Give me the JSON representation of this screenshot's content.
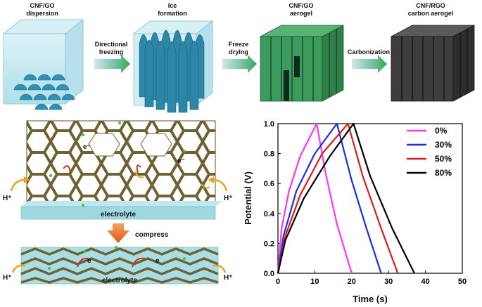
{
  "process": {
    "stages": [
      {
        "line1": "CNF/GO",
        "line2": "dispersion"
      },
      {
        "line1": "Ice",
        "line2": "formation"
      },
      {
        "line1": "CNF/GO",
        "line2": "aerogel"
      },
      {
        "line1": "CNF/RGO",
        "line2": "carbon aerogel"
      }
    ],
    "arrows": [
      {
        "line1": "Directional",
        "line2": "freezing"
      },
      {
        "line1": "Freeze",
        "line2": "drying"
      },
      {
        "line1": "Carbonization",
        "line2": ""
      }
    ]
  },
  "mechanism": {
    "electron_label": "e⁻",
    "electron_label_compressed": "e",
    "proton_label": "H⁺",
    "electrolyte_label": "electrolyte",
    "compress_label": "compress"
  },
  "colors": {
    "dispersion": "#bfe8f0",
    "ice": "#2b8fb0",
    "aerogel": "#3a9b5c",
    "carbon": "#3a3a3a",
    "arrow": "#3fae5a",
    "frame": "#7a6a3a",
    "electrolyte": "#9fd9e0",
    "compress_arrow": "#ef6a1a",
    "series_0": "#ff33ff",
    "series_30": "#1a2fe0",
    "series_50": "#e01a1a",
    "series_80": "#000000"
  },
  "chart_data": {
    "type": "line",
    "xlabel": "Time (s)",
    "ylabel": "Potential (V)",
    "xlim": [
      0,
      50
    ],
    "ylim": [
      0,
      1.0
    ],
    "xticks": [
      "0",
      "10",
      "20",
      "30",
      "40",
      "50"
    ],
    "yticks": [
      "0.0",
      "0.2",
      "0.4",
      "0.6",
      "0.8",
      "1.0"
    ],
    "legend_position": "top-right",
    "series": [
      {
        "name": "0%",
        "color": "#ff33ff",
        "x": [
          0,
          1,
          3,
          6,
          10.5,
          13,
          16,
          20
        ],
        "y": [
          0,
          0.3,
          0.55,
          0.78,
          1.0,
          0.66,
          0.33,
          0
        ]
      },
      {
        "name": "30%",
        "color": "#1a2fe0",
        "x": [
          0,
          1.5,
          5,
          10,
          16,
          20,
          24,
          28
        ],
        "y": [
          0,
          0.25,
          0.55,
          0.8,
          1.0,
          0.62,
          0.3,
          0
        ]
      },
      {
        "name": "50%",
        "color": "#e01a1a",
        "x": [
          0,
          2,
          6,
          12,
          19,
          23,
          28,
          32.5
        ],
        "y": [
          0,
          0.25,
          0.52,
          0.8,
          1.0,
          0.65,
          0.3,
          0
        ]
      },
      {
        "name": "80%",
        "color": "#000000",
        "x": [
          0,
          2,
          7,
          14,
          20.5,
          25,
          31,
          37
        ],
        "y": [
          0,
          0.22,
          0.5,
          0.78,
          1.0,
          0.65,
          0.3,
          0
        ]
      }
    ]
  }
}
